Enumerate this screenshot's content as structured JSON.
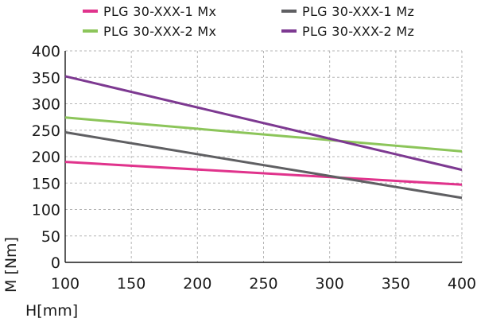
{
  "chart_data": {
    "type": "line",
    "title": "",
    "xlabel": "H[mm]",
    "ylabel": "M [Nm]",
    "xlim": [
      100,
      400
    ],
    "ylim": [
      0,
      400
    ],
    "xticks": [
      100,
      150,
      200,
      250,
      300,
      350,
      400
    ],
    "yticks": [
      0,
      50,
      100,
      150,
      200,
      250,
      300,
      350,
      400
    ],
    "grid": true,
    "legend_position": "top",
    "series": [
      {
        "name": "PLG 30-XXX-1 Mx",
        "color": "#e0338c",
        "x": [
          100,
          400
        ],
        "y": [
          190,
          147
        ]
      },
      {
        "name": "PLG 30-XXX-1 Mz",
        "color": "#5f5f62",
        "x": [
          100,
          400
        ],
        "y": [
          246,
          122
        ]
      },
      {
        "name": "PLG 30-XXX-2 Mx",
        "color": "#8cc55a",
        "x": [
          100,
          400
        ],
        "y": [
          274,
          210
        ]
      },
      {
        "name": "PLG 30-XXX-2 Mz",
        "color": "#7d3991",
        "x": [
          100,
          400
        ],
        "y": [
          352,
          175
        ]
      }
    ]
  }
}
